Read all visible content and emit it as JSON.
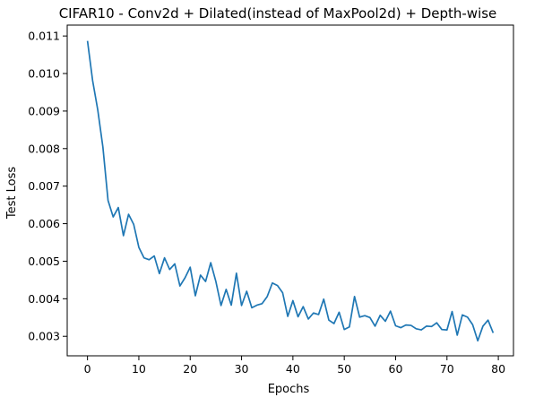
{
  "chart_data": {
    "type": "line",
    "title": "CIFAR10 - Conv2d + Dilated(instead of MaxPool2d) + Depth-wise",
    "xlabel": "Epochs",
    "ylabel": "Test Loss",
    "xlim": [
      -3.95,
      82.95
    ],
    "ylim": [
      0.00248,
      0.01129
    ],
    "x_ticks": [
      0,
      10,
      20,
      30,
      40,
      50,
      60,
      70,
      80
    ],
    "x_tick_labels": [
      "0",
      "10",
      "20",
      "30",
      "40",
      "50",
      "60",
      "70",
      "80"
    ],
    "y_ticks": [
      0.003,
      0.004,
      0.005,
      0.006,
      0.007,
      0.008,
      0.009,
      0.01,
      0.011
    ],
    "y_tick_labels": [
      "0.003",
      "0.004",
      "0.005",
      "0.006",
      "0.007",
      "0.008",
      "0.009",
      "0.010",
      "0.011"
    ],
    "grid": false,
    "legend": "none",
    "line_color": "#1f77b4",
    "series": [
      {
        "x": [
          0,
          1,
          2,
          3,
          4,
          5,
          6,
          7,
          8,
          9,
          10,
          11,
          12,
          13,
          14,
          15,
          16,
          17,
          18,
          19,
          20,
          21,
          22,
          23,
          24,
          25,
          26,
          27,
          28,
          29,
          30,
          31,
          32,
          33,
          34,
          35,
          36,
          37,
          38,
          39,
          40,
          41,
          42,
          43,
          44,
          45,
          46,
          47,
          48,
          49,
          50,
          51,
          52,
          53,
          54,
          55,
          56,
          57,
          58,
          59,
          60,
          61,
          62,
          63,
          64,
          65,
          66,
          67,
          68,
          69,
          70,
          71,
          72,
          73,
          74,
          75,
          76,
          77,
          78,
          79
        ],
        "values": [
          0.01087,
          0.00981,
          0.00903,
          0.00804,
          0.00662,
          0.00618,
          0.00643,
          0.00568,
          0.00625,
          0.00598,
          0.00537,
          0.00509,
          0.00504,
          0.00514,
          0.00467,
          0.00509,
          0.00478,
          0.00493,
          0.00434,
          0.00456,
          0.00484,
          0.00408,
          0.00463,
          0.00446,
          0.00496,
          0.00446,
          0.00382,
          0.00425,
          0.00383,
          0.00468,
          0.00382,
          0.0042,
          0.00376,
          0.00383,
          0.00387,
          0.00406,
          0.00442,
          0.00435,
          0.00416,
          0.00353,
          0.00395,
          0.00352,
          0.00379,
          0.00346,
          0.00362,
          0.00358,
          0.00399,
          0.00343,
          0.00334,
          0.00364,
          0.00318,
          0.00325,
          0.00406,
          0.00351,
          0.00355,
          0.0035,
          0.00327,
          0.00356,
          0.0034,
          0.00367,
          0.00328,
          0.00323,
          0.0033,
          0.00329,
          0.0032,
          0.00317,
          0.00327,
          0.00326,
          0.00336,
          0.00318,
          0.00317,
          0.00366,
          0.00303,
          0.00357,
          0.00351,
          0.00331,
          0.00288,
          0.00327,
          0.00343,
          0.00309
        ]
      }
    ]
  }
}
